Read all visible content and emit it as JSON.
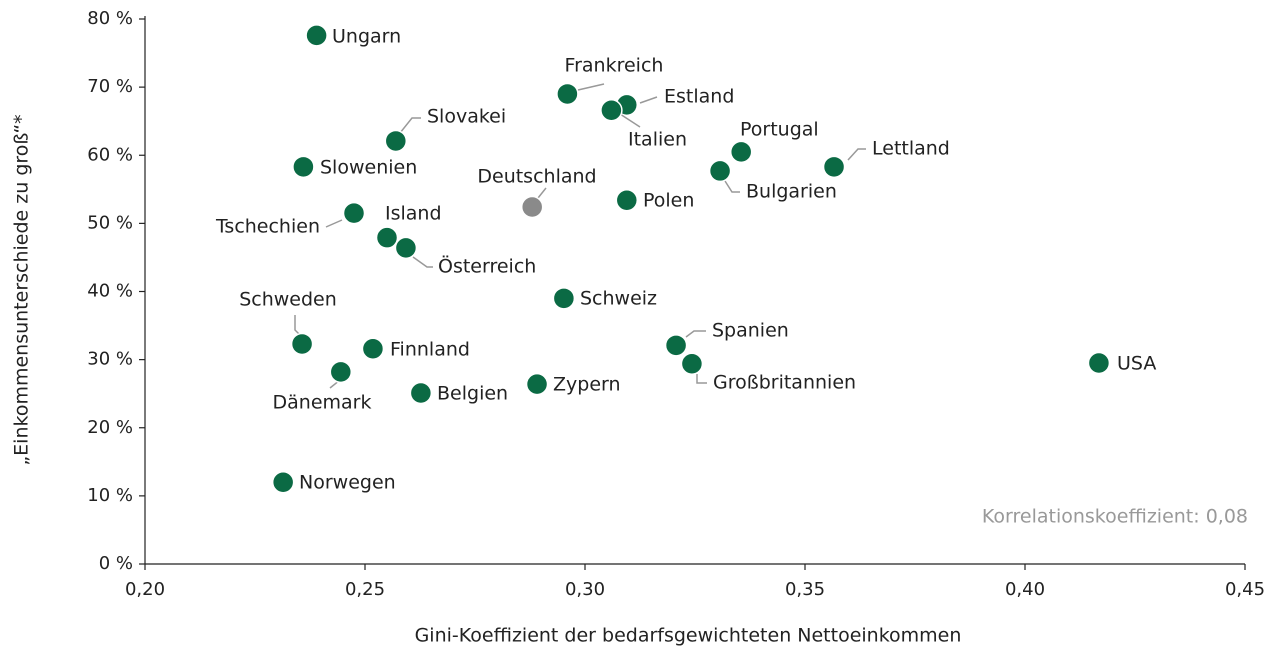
{
  "chart_data": {
    "type": "scatter",
    "xlabel": "Gini-Koeffizient der bedarfsgewichteten Nettoeinkommen",
    "ylabel": "„Einkommensunterschiede zu groß“*",
    "annotation": "Korrelationskoeffizient: 0,08",
    "xlim": [
      0.2,
      0.45
    ],
    "ylim": [
      0,
      80
    ],
    "xticks": [
      {
        "value": 0.2,
        "label": "0,20"
      },
      {
        "value": 0.25,
        "label": "0,25"
      },
      {
        "value": 0.3,
        "label": "0,30"
      },
      {
        "value": 0.35,
        "label": "0,35"
      },
      {
        "value": 0.4,
        "label": "0,40"
      },
      {
        "value": 0.45,
        "label": "0,45"
      }
    ],
    "yticks": [
      {
        "value": 0,
        "label": "0 %"
      },
      {
        "value": 10,
        "label": "10 %"
      },
      {
        "value": 20,
        "label": "20 %"
      },
      {
        "value": 30,
        "label": "30 %"
      },
      {
        "value": 40,
        "label": "40 %"
      },
      {
        "value": 50,
        "label": "50 %"
      },
      {
        "value": 60,
        "label": "60 %"
      },
      {
        "value": 70,
        "label": "70 %"
      },
      {
        "value": 80,
        "label": "80 %"
      }
    ],
    "points": [
      {
        "label": "Ungarn",
        "x": 0.239,
        "y": 77.6,
        "color": "#0b6a44"
      },
      {
        "label": "Frankreich",
        "x": 0.296,
        "y": 69.0,
        "color": "#0b6a44"
      },
      {
        "label": "Estland",
        "x": 0.3095,
        "y": 67.4,
        "color": "#0b6a44"
      },
      {
        "label": "Italien",
        "x": 0.306,
        "y": 66.6,
        "color": "#0b6a44"
      },
      {
        "label": "Slovakei",
        "x": 0.257,
        "y": 62.1,
        "color": "#0b6a44"
      },
      {
        "label": "Portugal",
        "x": 0.3355,
        "y": 60.5,
        "color": "#0b6a44"
      },
      {
        "label": "Slowenien",
        "x": 0.236,
        "y": 58.3,
        "color": "#0b6a44"
      },
      {
        "label": "Lettland",
        "x": 0.3566,
        "y": 58.3,
        "color": "#0b6a44"
      },
      {
        "label": "Bulgarien",
        "x": 0.3307,
        "y": 57.7,
        "color": "#0b6a44"
      },
      {
        "label": "Deutschland",
        "x": 0.288,
        "y": 52.4,
        "color": "#8a8a8a"
      },
      {
        "label": "Polen",
        "x": 0.3095,
        "y": 53.4,
        "color": "#0b6a44"
      },
      {
        "label": "Tschechien",
        "x": 0.2475,
        "y": 51.5,
        "color": "#0b6a44"
      },
      {
        "label": "Island",
        "x": 0.255,
        "y": 47.9,
        "color": "#0b6a44"
      },
      {
        "label": "Österreich",
        "x": 0.2593,
        "y": 46.4,
        "color": "#0b6a44"
      },
      {
        "label": "Schweiz",
        "x": 0.2952,
        "y": 39.0,
        "color": "#0b6a44"
      },
      {
        "label": "Schweden",
        "x": 0.2357,
        "y": 32.3,
        "color": "#0b6a44"
      },
      {
        "label": "Spanien",
        "x": 0.3207,
        "y": 32.1,
        "color": "#0b6a44"
      },
      {
        "label": "Finnland",
        "x": 0.2518,
        "y": 31.6,
        "color": "#0b6a44"
      },
      {
        "label": "USA",
        "x": 0.4168,
        "y": 29.5,
        "color": "#0b6a44"
      },
      {
        "label": "Großbritannien",
        "x": 0.3243,
        "y": 29.4,
        "color": "#0b6a44"
      },
      {
        "label": "Dänemark",
        "x": 0.2445,
        "y": 28.2,
        "color": "#0b6a44"
      },
      {
        "label": "Zypern",
        "x": 0.2891,
        "y": 26.4,
        "color": "#0b6a44"
      },
      {
        "label": "Belgien",
        "x": 0.2627,
        "y": 25.1,
        "color": "#0b6a44"
      },
      {
        "label": "Norwegen",
        "x": 0.2314,
        "y": 12.0,
        "color": "#0b6a44"
      }
    ]
  }
}
